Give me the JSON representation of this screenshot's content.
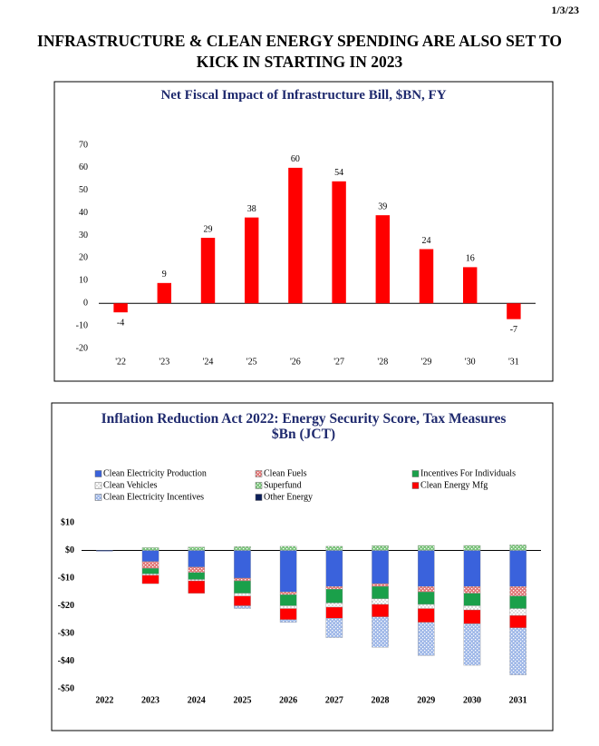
{
  "date": "1/3/23",
  "title": "INFRASTRUCTURE & CLEAN ENERGY SPENDING ARE ALSO SET TO KICK IN STARTING IN 2023",
  "chart_data": [
    {
      "type": "bar",
      "title": "Net Fiscal Impact of Infrastructure Bill, $BN, FY",
      "categories": [
        "'22",
        "'23",
        "'24",
        "'25",
        "'26",
        "'27",
        "'28",
        "'29",
        "'30",
        "'31"
      ],
      "values": [
        -4,
        9,
        29,
        38,
        60,
        54,
        39,
        24,
        16,
        -7
      ],
      "color": "#ff0000",
      "ylim": [
        -20,
        70
      ],
      "yticks": [
        -20,
        -10,
        0,
        10,
        20,
        30,
        40,
        50,
        60,
        70
      ],
      "data_labels": true,
      "grid": false
    },
    {
      "type": "stacked_bar",
      "title": "Inflation Reduction Act 2022: Energy Security Score, Tax Measures $Bn (JCT)",
      "categories": [
        "2022",
        "2023",
        "2024",
        "2025",
        "2026",
        "2027",
        "2028",
        "2029",
        "2030",
        "2031"
      ],
      "series": [
        {
          "name": "Clean Electricity Production",
          "color": "#3a62dc",
          "pattern": "solid",
          "values": [
            -0.3,
            -4,
            -6,
            -10,
            -15,
            -13,
            -12,
            -13,
            -13,
            -13
          ]
        },
        {
          "name": "Clean Fuels",
          "color": "#e07878",
          "pattern": "hatch",
          "values": [
            0,
            -2.5,
            -2,
            -1,
            -1,
            -1,
            -1,
            -2,
            -2.5,
            -3.5
          ]
        },
        {
          "name": "Incentives For Individuals",
          "color": "#1aa04a",
          "pattern": "solid",
          "values": [
            0,
            -2,
            -2.5,
            -4.5,
            -4,
            -5,
            -4.5,
            -4.5,
            -4.5,
            -4.5
          ]
        },
        {
          "name": "Clean Vehicles",
          "color": "#ffffff",
          "pattern": "dots",
          "values": [
            0,
            -0.5,
            -0.5,
            -1,
            -1,
            -1.5,
            -2,
            -1.5,
            -1.5,
            -2.5
          ]
        },
        {
          "name": "Superfund",
          "color": "#7cc47c",
          "pattern": "hatch",
          "values": [
            0,
            1,
            1.2,
            1.4,
            1.5,
            1.5,
            1.7,
            1.8,
            1.8,
            2
          ]
        },
        {
          "name": "Clean Energy Mfg",
          "color": "#ff0000",
          "pattern": "solid",
          "values": [
            0,
            -3,
            -4.5,
            -3.5,
            -4,
            -4,
            -4.5,
            -5,
            -5,
            -4.5
          ]
        },
        {
          "name": "Clean Electricity Incentives",
          "color": "#9fb8e8",
          "pattern": "hatch",
          "values": [
            0,
            0,
            0,
            -1,
            -1,
            -7,
            -11,
            -12,
            -15,
            -17
          ]
        },
        {
          "name": "Other Energy",
          "color": "#0c1f5a",
          "pattern": "solid",
          "values": [
            0,
            0,
            0,
            0,
            0,
            0,
            0,
            0,
            0,
            0
          ]
        }
      ],
      "ylim": [
        -50,
        10
      ],
      "yticks": [
        {
          "value": -50,
          "label": "-$50"
        },
        {
          "value": -40,
          "label": "-$40"
        },
        {
          "value": -30,
          "label": "-$30"
        },
        {
          "value": -20,
          "label": "-$20"
        },
        {
          "value": -10,
          "label": "-$10"
        },
        {
          "value": 0,
          "label": "$0"
        },
        {
          "value": 10,
          "label": "$10"
        }
      ],
      "legend": "top",
      "grid": false
    }
  ]
}
